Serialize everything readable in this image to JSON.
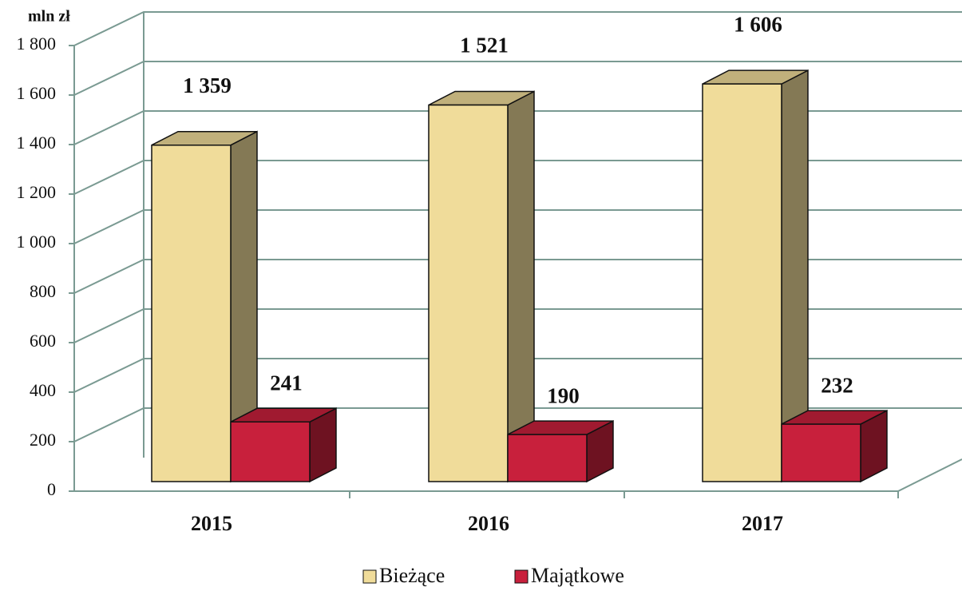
{
  "chart_data": {
    "type": "bar3d",
    "y_axis_label": "mln zł",
    "categories": [
      "2015",
      "2016",
      "2017"
    ],
    "series": [
      {
        "name": "Bieżące",
        "color": "#f0dc9a",
        "values": [
          1359,
          1521,
          1606
        ],
        "value_labels": [
          "1 359",
          "1 521",
          "1 606"
        ]
      },
      {
        "name": "Majątkowe",
        "color": "#c8203c",
        "values": [
          241,
          190,
          232
        ]
      }
    ],
    "ylim": [
      0,
      1800
    ],
    "yticks": [
      0,
      200,
      400,
      600,
      800,
      {
        "value": 1000,
        "label": "1 000"
      },
      {
        "value": 1200,
        "label": "1 200"
      },
      {
        "value": 1400,
        "label": "1 400"
      },
      {
        "value": 1600,
        "label": "1 600"
      },
      {
        "value": 1800,
        "label": "1 800"
      }
    ],
    "grid": true,
    "legend": "bottom"
  }
}
